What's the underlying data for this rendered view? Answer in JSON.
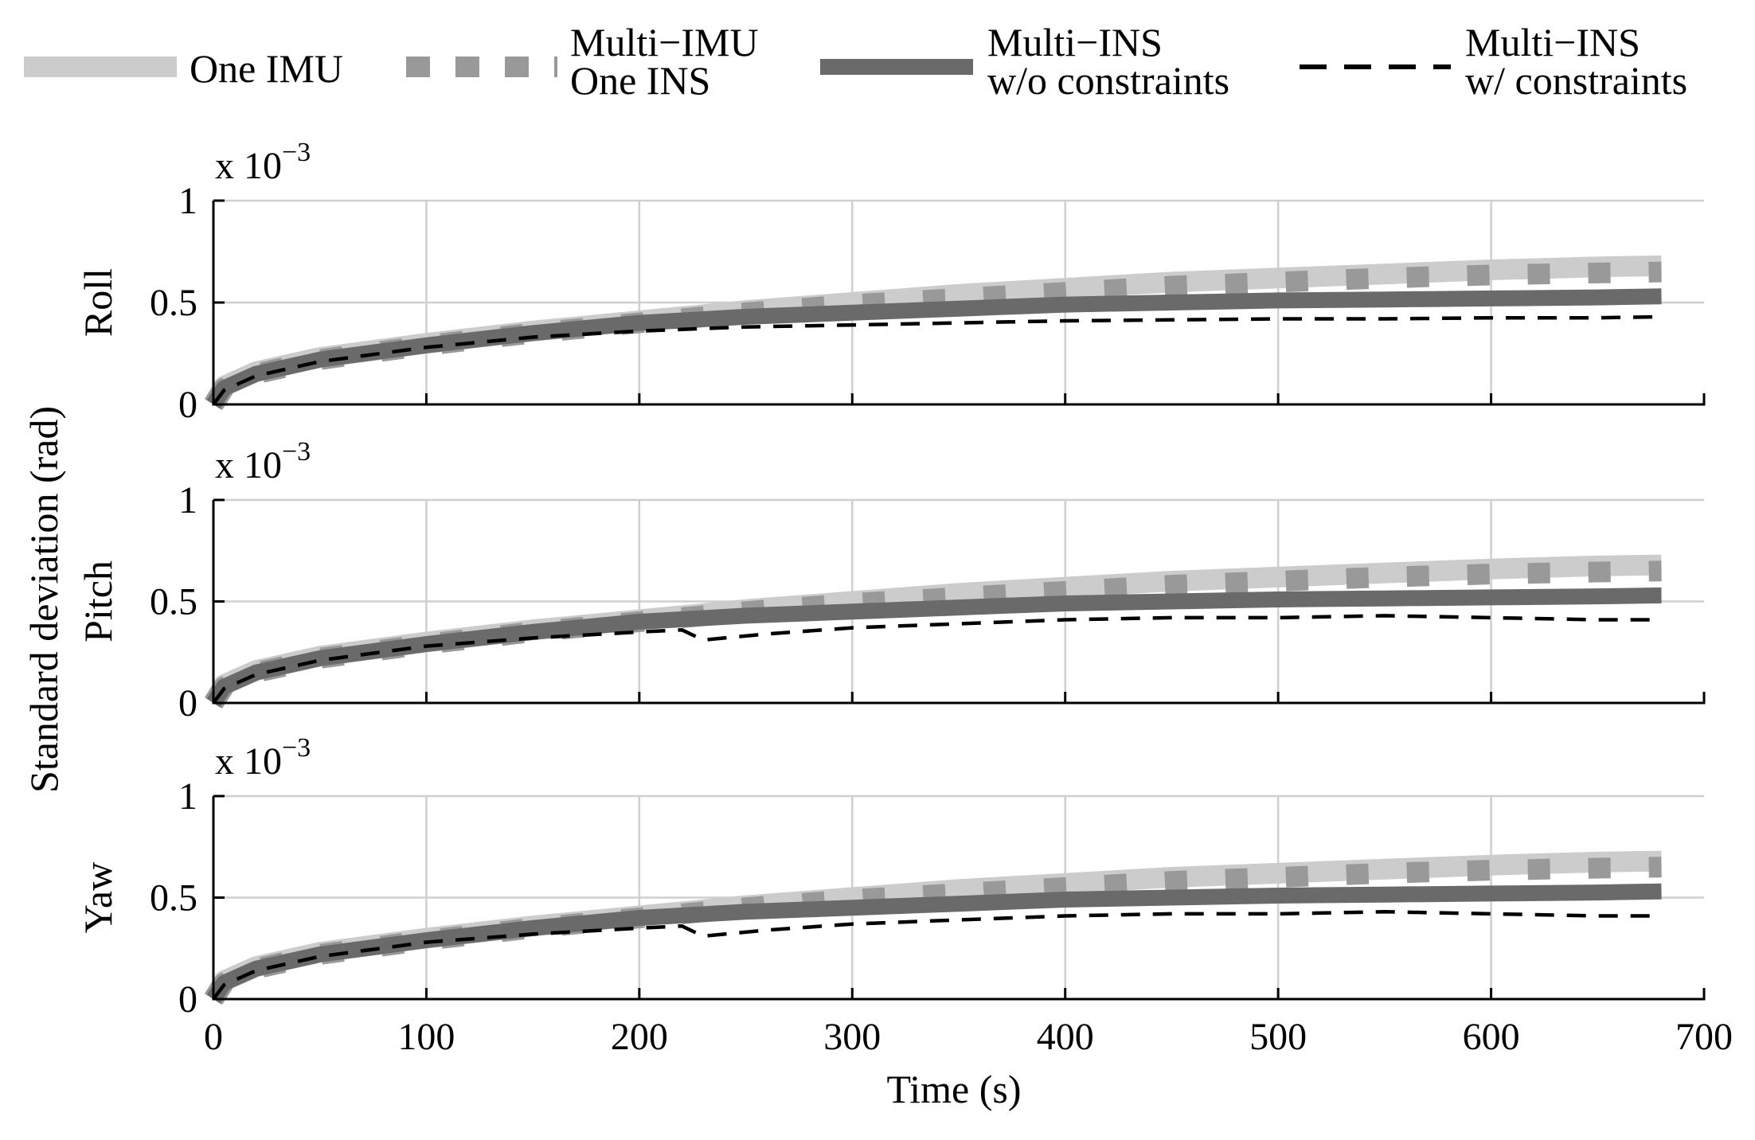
{
  "chart_data": {
    "type": "line",
    "ylabel": "Standard deviation (rad)",
    "xlabel": "Time (s)",
    "xlim": [
      0,
      700
    ],
    "x_ticks": [
      "0",
      "100",
      "200",
      "300",
      "400",
      "500",
      "600",
      "700"
    ],
    "legend": {
      "placement": "top",
      "entries": [
        {
          "lines": [
            "One IMU"
          ],
          "color": "#cccccc",
          "style": "thick-solid"
        },
        {
          "lines": [
            "Multi−IMU",
            "One INS"
          ],
          "color": "#999999",
          "style": "thick-dashed"
        },
        {
          "lines": [
            "Multi−INS",
            "w/o constraints"
          ],
          "color": "#6a6a6a",
          "style": "solid"
        },
        {
          "lines": [
            "Multi−INS",
            "w/ constraints"
          ],
          "color": "#000000",
          "style": "dashed"
        }
      ]
    },
    "panels": [
      {
        "name": "roll",
        "ylabel": "Roll",
        "exponent_base": "x 10",
        "exponent_power": "−3",
        "ylim": [
          0,
          1
        ],
        "y_ticks": [
          "0",
          "0.5",
          "1"
        ],
        "series": [
          {
            "name": "One IMU",
            "x": [
              0,
              5,
              20,
              50,
              100,
              150,
              200,
              250,
              300,
              350,
              400,
              450,
              500,
              550,
              600,
              650,
              680
            ],
            "values": [
              0,
              0.09,
              0.16,
              0.23,
              0.3,
              0.36,
              0.41,
              0.46,
              0.5,
              0.54,
              0.57,
              0.6,
              0.62,
              0.64,
              0.66,
              0.675,
              0.68
            ]
          },
          {
            "name": "Multi-IMU One INS",
            "x": [
              0,
              5,
              20,
              50,
              100,
              150,
              200,
              250,
              300,
              350,
              400,
              450,
              500,
              550,
              600,
              650,
              680
            ],
            "values": [
              0,
              0.08,
              0.15,
              0.22,
              0.29,
              0.35,
              0.4,
              0.45,
              0.49,
              0.52,
              0.55,
              0.58,
              0.6,
              0.62,
              0.635,
              0.645,
              0.65
            ]
          },
          {
            "name": "Multi-INS w/o constraints",
            "x": [
              0,
              5,
              20,
              50,
              100,
              150,
              200,
              250,
              300,
              350,
              400,
              450,
              500,
              550,
              600,
              650,
              680
            ],
            "values": [
              0,
              0.08,
              0.15,
              0.22,
              0.29,
              0.35,
              0.4,
              0.43,
              0.45,
              0.47,
              0.49,
              0.5,
              0.51,
              0.515,
              0.52,
              0.525,
              0.53
            ]
          },
          {
            "name": "Multi-INS w/ constraints",
            "x": [
              0,
              5,
              20,
              50,
              100,
              150,
              200,
              250,
              300,
              350,
              400,
              450,
              500,
              550,
              600,
              650,
              680
            ],
            "values": [
              0,
              0.07,
              0.14,
              0.21,
              0.28,
              0.33,
              0.36,
              0.38,
              0.39,
              0.4,
              0.41,
              0.415,
              0.42,
              0.42,
              0.425,
              0.425,
              0.43
            ]
          }
        ]
      },
      {
        "name": "pitch",
        "ylabel": "Pitch",
        "exponent_base": "x 10",
        "exponent_power": "−3",
        "ylim": [
          0,
          1
        ],
        "y_ticks": [
          "0",
          "0.5",
          "1"
        ],
        "series": [
          {
            "name": "One IMU",
            "x": [
              0,
              5,
              20,
              50,
              100,
              150,
              200,
              250,
              300,
              350,
              400,
              450,
              500,
              550,
              600,
              650,
              680
            ],
            "values": [
              0,
              0.09,
              0.16,
              0.23,
              0.3,
              0.36,
              0.41,
              0.46,
              0.5,
              0.54,
              0.57,
              0.6,
              0.62,
              0.64,
              0.66,
              0.675,
              0.68
            ]
          },
          {
            "name": "Multi-IMU One INS",
            "x": [
              0,
              5,
              20,
              50,
              100,
              150,
              200,
              250,
              300,
              350,
              400,
              450,
              500,
              550,
              600,
              650,
              680
            ],
            "values": [
              0,
              0.08,
              0.15,
              0.22,
              0.29,
              0.35,
              0.4,
              0.45,
              0.49,
              0.52,
              0.55,
              0.58,
              0.6,
              0.62,
              0.635,
              0.645,
              0.65
            ]
          },
          {
            "name": "Multi-INS w/o constraints",
            "x": [
              0,
              5,
              20,
              50,
              100,
              150,
              200,
              250,
              300,
              350,
              400,
              450,
              500,
              550,
              600,
              650,
              680
            ],
            "values": [
              0,
              0.08,
              0.15,
              0.22,
              0.29,
              0.35,
              0.4,
              0.43,
              0.45,
              0.47,
              0.49,
              0.5,
              0.51,
              0.515,
              0.52,
              0.525,
              0.53
            ]
          },
          {
            "name": "Multi-INS w/ constraints",
            "x": [
              0,
              5,
              20,
              50,
              100,
              150,
              200,
              220,
              230,
              240,
              260,
              300,
              350,
              400,
              450,
              500,
              550,
              600,
              650,
              680
            ],
            "values": [
              0,
              0.07,
              0.14,
              0.21,
              0.28,
              0.32,
              0.35,
              0.36,
              0.31,
              0.32,
              0.34,
              0.37,
              0.39,
              0.41,
              0.42,
              0.42,
              0.43,
              0.42,
              0.41,
              0.41
            ]
          }
        ]
      },
      {
        "name": "yaw",
        "ylabel": "Yaw",
        "exponent_base": "x 10",
        "exponent_power": "−3",
        "ylim": [
          0,
          1
        ],
        "y_ticks": [
          "0",
          "0.5",
          "1"
        ],
        "series": [
          {
            "name": "One IMU",
            "x": [
              0,
              5,
              20,
              50,
              100,
              150,
              200,
              250,
              300,
              350,
              400,
              450,
              500,
              550,
              600,
              650,
              680
            ],
            "values": [
              0,
              0.09,
              0.16,
              0.23,
              0.3,
              0.36,
              0.41,
              0.46,
              0.5,
              0.54,
              0.57,
              0.6,
              0.62,
              0.64,
              0.66,
              0.675,
              0.68
            ]
          },
          {
            "name": "Multi-IMU One INS",
            "x": [
              0,
              5,
              20,
              50,
              100,
              150,
              200,
              250,
              300,
              350,
              400,
              450,
              500,
              550,
              600,
              650,
              680
            ],
            "values": [
              0,
              0.08,
              0.15,
              0.22,
              0.29,
              0.35,
              0.4,
              0.45,
              0.49,
              0.52,
              0.55,
              0.58,
              0.6,
              0.62,
              0.635,
              0.645,
              0.65
            ]
          },
          {
            "name": "Multi-INS w/o constraints",
            "x": [
              0,
              5,
              20,
              50,
              100,
              150,
              200,
              250,
              300,
              350,
              400,
              450,
              500,
              550,
              600,
              650,
              680
            ],
            "values": [
              0,
              0.08,
              0.15,
              0.22,
              0.29,
              0.35,
              0.4,
              0.43,
              0.45,
              0.47,
              0.49,
              0.5,
              0.51,
              0.515,
              0.52,
              0.525,
              0.53
            ]
          },
          {
            "name": "Multi-INS w/ constraints",
            "x": [
              0,
              5,
              20,
              50,
              100,
              150,
              200,
              220,
              230,
              240,
              260,
              300,
              350,
              400,
              450,
              500,
              550,
              600,
              650,
              680
            ],
            "values": [
              0,
              0.07,
              0.14,
              0.21,
              0.28,
              0.32,
              0.35,
              0.36,
              0.31,
              0.32,
              0.34,
              0.37,
              0.39,
              0.41,
              0.42,
              0.42,
              0.43,
              0.42,
              0.41,
              0.41
            ]
          }
        ]
      }
    ]
  }
}
